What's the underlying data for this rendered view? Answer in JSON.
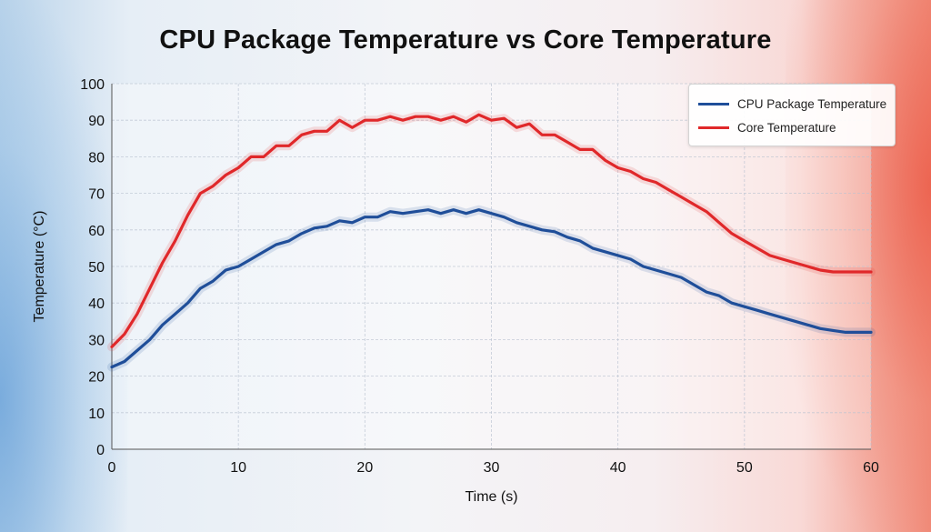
{
  "chart_data": {
    "type": "line",
    "title": "CPU Package Temperature vs Core Temperature",
    "xlabel": "Time (s)",
    "ylabel": "Temperature (°C)",
    "xlim": [
      0,
      60
    ],
    "ylim": [
      0,
      100
    ],
    "xticks": [
      0,
      10,
      20,
      30,
      40,
      50,
      60
    ],
    "yticks": [
      0,
      10,
      20,
      30,
      40,
      50,
      60,
      70,
      80,
      90,
      100
    ],
    "grid": true,
    "legend_position": "top-right",
    "series": [
      {
        "name": "CPU Package Temperature",
        "color": "#1f4e99",
        "x": [
          0,
          1,
          2,
          3,
          4,
          5,
          6,
          7,
          8,
          9,
          10,
          11,
          12,
          13,
          14,
          15,
          16,
          17,
          18,
          19,
          20,
          21,
          22,
          23,
          24,
          25,
          26,
          27,
          28,
          29,
          30,
          31,
          32,
          33,
          34,
          35,
          36,
          37,
          38,
          39,
          40,
          41,
          42,
          43,
          44,
          45,
          46,
          47,
          48,
          49,
          50,
          51,
          52,
          53,
          54,
          55,
          56,
          57,
          58,
          59,
          60
        ],
        "y": [
          22.5,
          24,
          27,
          30,
          34,
          37,
          40,
          44,
          46,
          49,
          50,
          52,
          54,
          56,
          57,
          59,
          60.5,
          61,
          62.5,
          62,
          63.5,
          63.5,
          65,
          64.5,
          65,
          65.5,
          64.5,
          65.5,
          64.5,
          65.5,
          64.5,
          63.5,
          62,
          61,
          60,
          59.5,
          58,
          57,
          55,
          54,
          53,
          52,
          50,
          49,
          48,
          47,
          45,
          43,
          42,
          40,
          39,
          38,
          37,
          36,
          35,
          34,
          33,
          32.5,
          32,
          32,
          32
        ]
      },
      {
        "name": "Core Temperature",
        "color": "#e0282a",
        "x": [
          0,
          1,
          2,
          3,
          4,
          5,
          6,
          7,
          8,
          9,
          10,
          11,
          12,
          13,
          14,
          15,
          16,
          17,
          18,
          19,
          20,
          21,
          22,
          23,
          24,
          25,
          26,
          27,
          28,
          29,
          30,
          31,
          32,
          33,
          34,
          35,
          36,
          37,
          38,
          39,
          40,
          41,
          42,
          43,
          44,
          45,
          46,
          47,
          48,
          49,
          50,
          51,
          52,
          53,
          54,
          55,
          56,
          57,
          58,
          59,
          60
        ],
        "y": [
          28,
          31.5,
          37,
          44,
          51,
          57,
          64,
          70,
          72,
          75,
          77,
          80,
          80,
          83,
          83,
          86,
          87,
          87,
          90,
          88,
          90,
          90,
          91,
          90,
          91,
          91,
          90,
          91,
          89.5,
          91.5,
          90,
          90.5,
          88,
          89,
          86,
          86,
          84,
          82,
          82,
          79,
          77,
          76,
          74,
          73,
          71,
          69,
          67,
          65,
          62,
          59,
          57,
          55,
          53,
          52,
          51,
          50,
          49,
          48.5,
          48.5,
          48.5,
          48.5
        ]
      }
    ]
  }
}
